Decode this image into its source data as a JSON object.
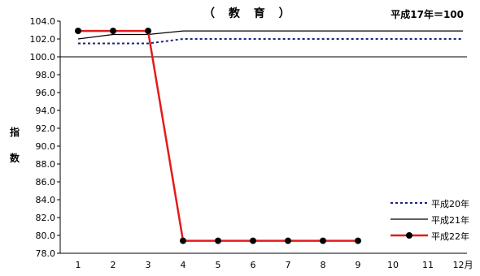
{
  "chart_data": {
    "type": "line",
    "title": "（ 教 育 ）",
    "note": "平成17年＝100",
    "ylabel": "指数",
    "categories": [
      "1",
      "2",
      "3",
      "4",
      "5",
      "6",
      "7",
      "8",
      "9",
      "10",
      "11",
      "12月"
    ],
    "ylim": [
      78.0,
      104.0
    ],
    "ytick_step": 2.0,
    "baseline": 100.0,
    "legend_position": "bottom-right",
    "series": [
      {
        "name": "平成20年",
        "style": "dotted",
        "color": "#1a237e",
        "values": [
          101.5,
          101.5,
          101.5,
          102.0,
          102.0,
          102.0,
          102.0,
          102.0,
          102.0,
          102.0,
          102.0,
          102.0
        ]
      },
      {
        "name": "平成21年",
        "style": "solid",
        "color": "#000000",
        "values": [
          102.0,
          102.5,
          102.5,
          102.9,
          102.9,
          102.9,
          102.9,
          102.9,
          102.9,
          102.9,
          102.9,
          102.9
        ]
      },
      {
        "name": "平成22年",
        "style": "solid-markers",
        "color": "#e41a1c",
        "values": [
          102.9,
          102.9,
          102.9,
          79.4,
          79.4,
          79.4,
          79.4,
          79.4,
          79.4,
          null,
          null,
          null
        ]
      }
    ]
  }
}
